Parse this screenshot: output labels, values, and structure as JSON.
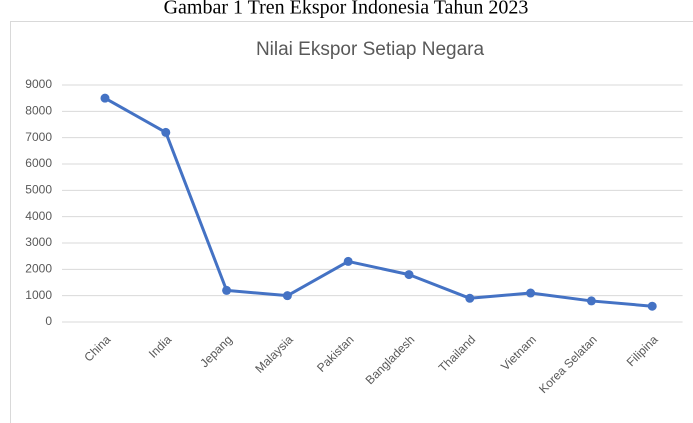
{
  "chart_data": {
    "type": "line",
    "caption": "Gambar 1 Tren Ekspor Indonesia Tahun 2023",
    "title": "Nilai Ekspor Setiap Negara",
    "categories": [
      "China",
      "India",
      "Jepang",
      "Malaysia",
      "Pakistan",
      "Bangladesh",
      "Thailand",
      "Vietnam",
      "Korea Selatan",
      "Filipina"
    ],
    "series": [
      {
        "name": "Nilai Ekspor",
        "color": "#4472c4",
        "values": [
          8500,
          7200,
          1200,
          1000,
          2300,
          1800,
          900,
          1100,
          800,
          600
        ]
      }
    ],
    "ylim": [
      0,
      9000
    ],
    "yticks": [
      0,
      1000,
      2000,
      3000,
      4000,
      5000,
      6000,
      7000,
      8000,
      9000
    ],
    "grid": true
  }
}
